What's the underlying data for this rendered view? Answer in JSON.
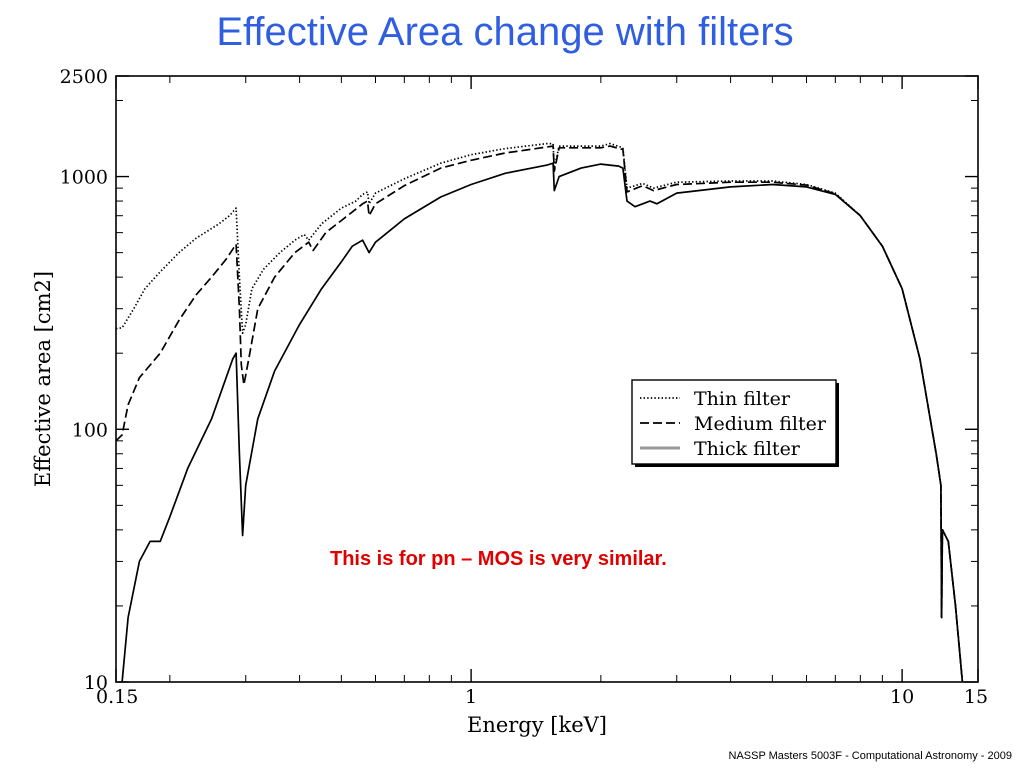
{
  "slide": {
    "title": "Effective Area change with filters",
    "note": "This is for pn – MOS is very similar.",
    "footer": "NASSP Masters 5003F - Computational Astronomy - 2009"
  },
  "chart_data": {
    "type": "line",
    "title": "",
    "xlabel": "Energy [keV]",
    "ylabel": "Effective area [cm2]",
    "xscale": "log",
    "yscale": "log",
    "xlim": [
      0.15,
      15
    ],
    "ylim": [
      10,
      2500
    ],
    "xticks": [
      {
        "value": 0.15,
        "label": "0.15"
      },
      {
        "value": 1,
        "label": "1"
      },
      {
        "value": 10,
        "label": "10"
      },
      {
        "value": 15,
        "label": "15"
      }
    ],
    "yticks": [
      {
        "value": 10,
        "label": "10"
      },
      {
        "value": 100,
        "label": "100"
      },
      {
        "value": 1000,
        "label": "1000"
      },
      {
        "value": 2500,
        "label": "2500"
      }
    ],
    "legend_position": "right-center",
    "grid": false,
    "series": [
      {
        "name": "Thin filter",
        "style": "dotted",
        "color": "#000000",
        "points": [
          [
            0.15,
            250
          ],
          [
            0.155,
            252
          ],
          [
            0.165,
            300
          ],
          [
            0.175,
            360
          ],
          [
            0.19,
            420
          ],
          [
            0.21,
            500
          ],
          [
            0.23,
            570
          ],
          [
            0.26,
            650
          ],
          [
            0.275,
            700
          ],
          [
            0.285,
            750
          ],
          [
            0.29,
            400
          ],
          [
            0.295,
            240
          ],
          [
            0.3,
            260
          ],
          [
            0.31,
            360
          ],
          [
            0.33,
            430
          ],
          [
            0.36,
            500
          ],
          [
            0.39,
            560
          ],
          [
            0.41,
            590
          ],
          [
            0.42,
            560
          ],
          [
            0.45,
            650
          ],
          [
            0.5,
            750
          ],
          [
            0.54,
            800
          ],
          [
            0.56,
            850
          ],
          [
            0.575,
            870
          ],
          [
            0.58,
            780
          ],
          [
            0.6,
            860
          ],
          [
            0.7,
            980
          ],
          [
            0.85,
            1130
          ],
          [
            1.0,
            1220
          ],
          [
            1.2,
            1290
          ],
          [
            1.5,
            1350
          ],
          [
            1.55,
            1350
          ],
          [
            1.56,
            1080
          ],
          [
            1.6,
            1320
          ],
          [
            2.0,
            1320
          ],
          [
            2.1,
            1350
          ],
          [
            2.25,
            1300
          ],
          [
            2.3,
            900
          ],
          [
            2.5,
            940
          ],
          [
            2.65,
            900
          ],
          [
            3.0,
            950
          ],
          [
            4.0,
            960
          ],
          [
            5.0,
            960
          ],
          [
            6.0,
            930
          ],
          [
            7.0,
            860
          ],
          [
            8.0,
            700
          ],
          [
            9.0,
            530
          ],
          [
            10.0,
            360
          ],
          [
            11.0,
            190
          ],
          [
            12.0,
            80
          ],
          [
            12.3,
            60
          ],
          [
            12.35,
            18
          ],
          [
            12.4,
            40
          ],
          [
            12.8,
            36
          ],
          [
            13.3,
            20
          ],
          [
            13.8,
            10
          ]
        ]
      },
      {
        "name": "Medium filter",
        "style": "dashed",
        "color": "#000000",
        "points": [
          [
            0.15,
            90
          ],
          [
            0.155,
            95
          ],
          [
            0.16,
            125
          ],
          [
            0.17,
            160
          ],
          [
            0.19,
            200
          ],
          [
            0.21,
            270
          ],
          [
            0.23,
            340
          ],
          [
            0.25,
            400
          ],
          [
            0.27,
            470
          ],
          [
            0.285,
            540
          ],
          [
            0.29,
            300
          ],
          [
            0.293,
            180
          ],
          [
            0.297,
            150
          ],
          [
            0.305,
            190
          ],
          [
            0.32,
            300
          ],
          [
            0.35,
            400
          ],
          [
            0.39,
            500
          ],
          [
            0.42,
            550
          ],
          [
            0.43,
            510
          ],
          [
            0.46,
            600
          ],
          [
            0.5,
            670
          ],
          [
            0.56,
            780
          ],
          [
            0.575,
            800
          ],
          [
            0.58,
            700
          ],
          [
            0.6,
            780
          ],
          [
            0.7,
            920
          ],
          [
            0.85,
            1080
          ],
          [
            1.0,
            1160
          ],
          [
            1.2,
            1240
          ],
          [
            1.55,
            1320
          ],
          [
            1.56,
            1050
          ],
          [
            1.6,
            1300
          ],
          [
            2.0,
            1300
          ],
          [
            2.1,
            1320
          ],
          [
            2.25,
            1280
          ],
          [
            2.3,
            870
          ],
          [
            2.5,
            920
          ],
          [
            2.65,
            880
          ],
          [
            3.0,
            930
          ],
          [
            4.0,
            950
          ],
          [
            5.0,
            950
          ],
          [
            6.0,
            925
          ],
          [
            7.0,
            855
          ],
          [
            8.0,
            700
          ],
          [
            9.0,
            530
          ],
          [
            10.0,
            360
          ],
          [
            11.0,
            190
          ],
          [
            12.0,
            80
          ],
          [
            12.3,
            60
          ],
          [
            12.35,
            18
          ],
          [
            12.4,
            40
          ],
          [
            12.8,
            36
          ],
          [
            13.3,
            20
          ],
          [
            13.8,
            10
          ]
        ]
      },
      {
        "name": "Thick filter",
        "style": "solid",
        "color": "#000000",
        "legend_color": "#999999",
        "points": [
          [
            0.155,
            10
          ],
          [
            0.16,
            18
          ],
          [
            0.17,
            30
          ],
          [
            0.18,
            36
          ],
          [
            0.19,
            36
          ],
          [
            0.2,
            45
          ],
          [
            0.22,
            70
          ],
          [
            0.25,
            110
          ],
          [
            0.28,
            190
          ],
          [
            0.285,
            200
          ],
          [
            0.29,
            80
          ],
          [
            0.295,
            38
          ],
          [
            0.3,
            60
          ],
          [
            0.32,
            110
          ],
          [
            0.35,
            170
          ],
          [
            0.4,
            260
          ],
          [
            0.45,
            360
          ],
          [
            0.5,
            460
          ],
          [
            0.53,
            530
          ],
          [
            0.56,
            560
          ],
          [
            0.58,
            500
          ],
          [
            0.6,
            550
          ],
          [
            0.7,
            680
          ],
          [
            0.85,
            830
          ],
          [
            1.0,
            930
          ],
          [
            1.2,
            1030
          ],
          [
            1.5,
            1110
          ],
          [
            1.55,
            1130
          ],
          [
            1.56,
            880
          ],
          [
            1.6,
            1000
          ],
          [
            1.8,
            1080
          ],
          [
            2.0,
            1120
          ],
          [
            2.2,
            1100
          ],
          [
            2.25,
            1080
          ],
          [
            2.3,
            800
          ],
          [
            2.4,
            760
          ],
          [
            2.6,
            800
          ],
          [
            2.7,
            780
          ],
          [
            3.0,
            860
          ],
          [
            4.0,
            910
          ],
          [
            5.0,
            930
          ],
          [
            6.0,
            910
          ],
          [
            7.0,
            850
          ],
          [
            8.0,
            700
          ],
          [
            9.0,
            530
          ],
          [
            10.0,
            360
          ],
          [
            11.0,
            190
          ],
          [
            12.0,
            80
          ],
          [
            12.3,
            60
          ],
          [
            12.35,
            18
          ],
          [
            12.4,
            40
          ],
          [
            12.8,
            36
          ],
          [
            13.3,
            20
          ],
          [
            13.8,
            10
          ]
        ]
      }
    ]
  }
}
